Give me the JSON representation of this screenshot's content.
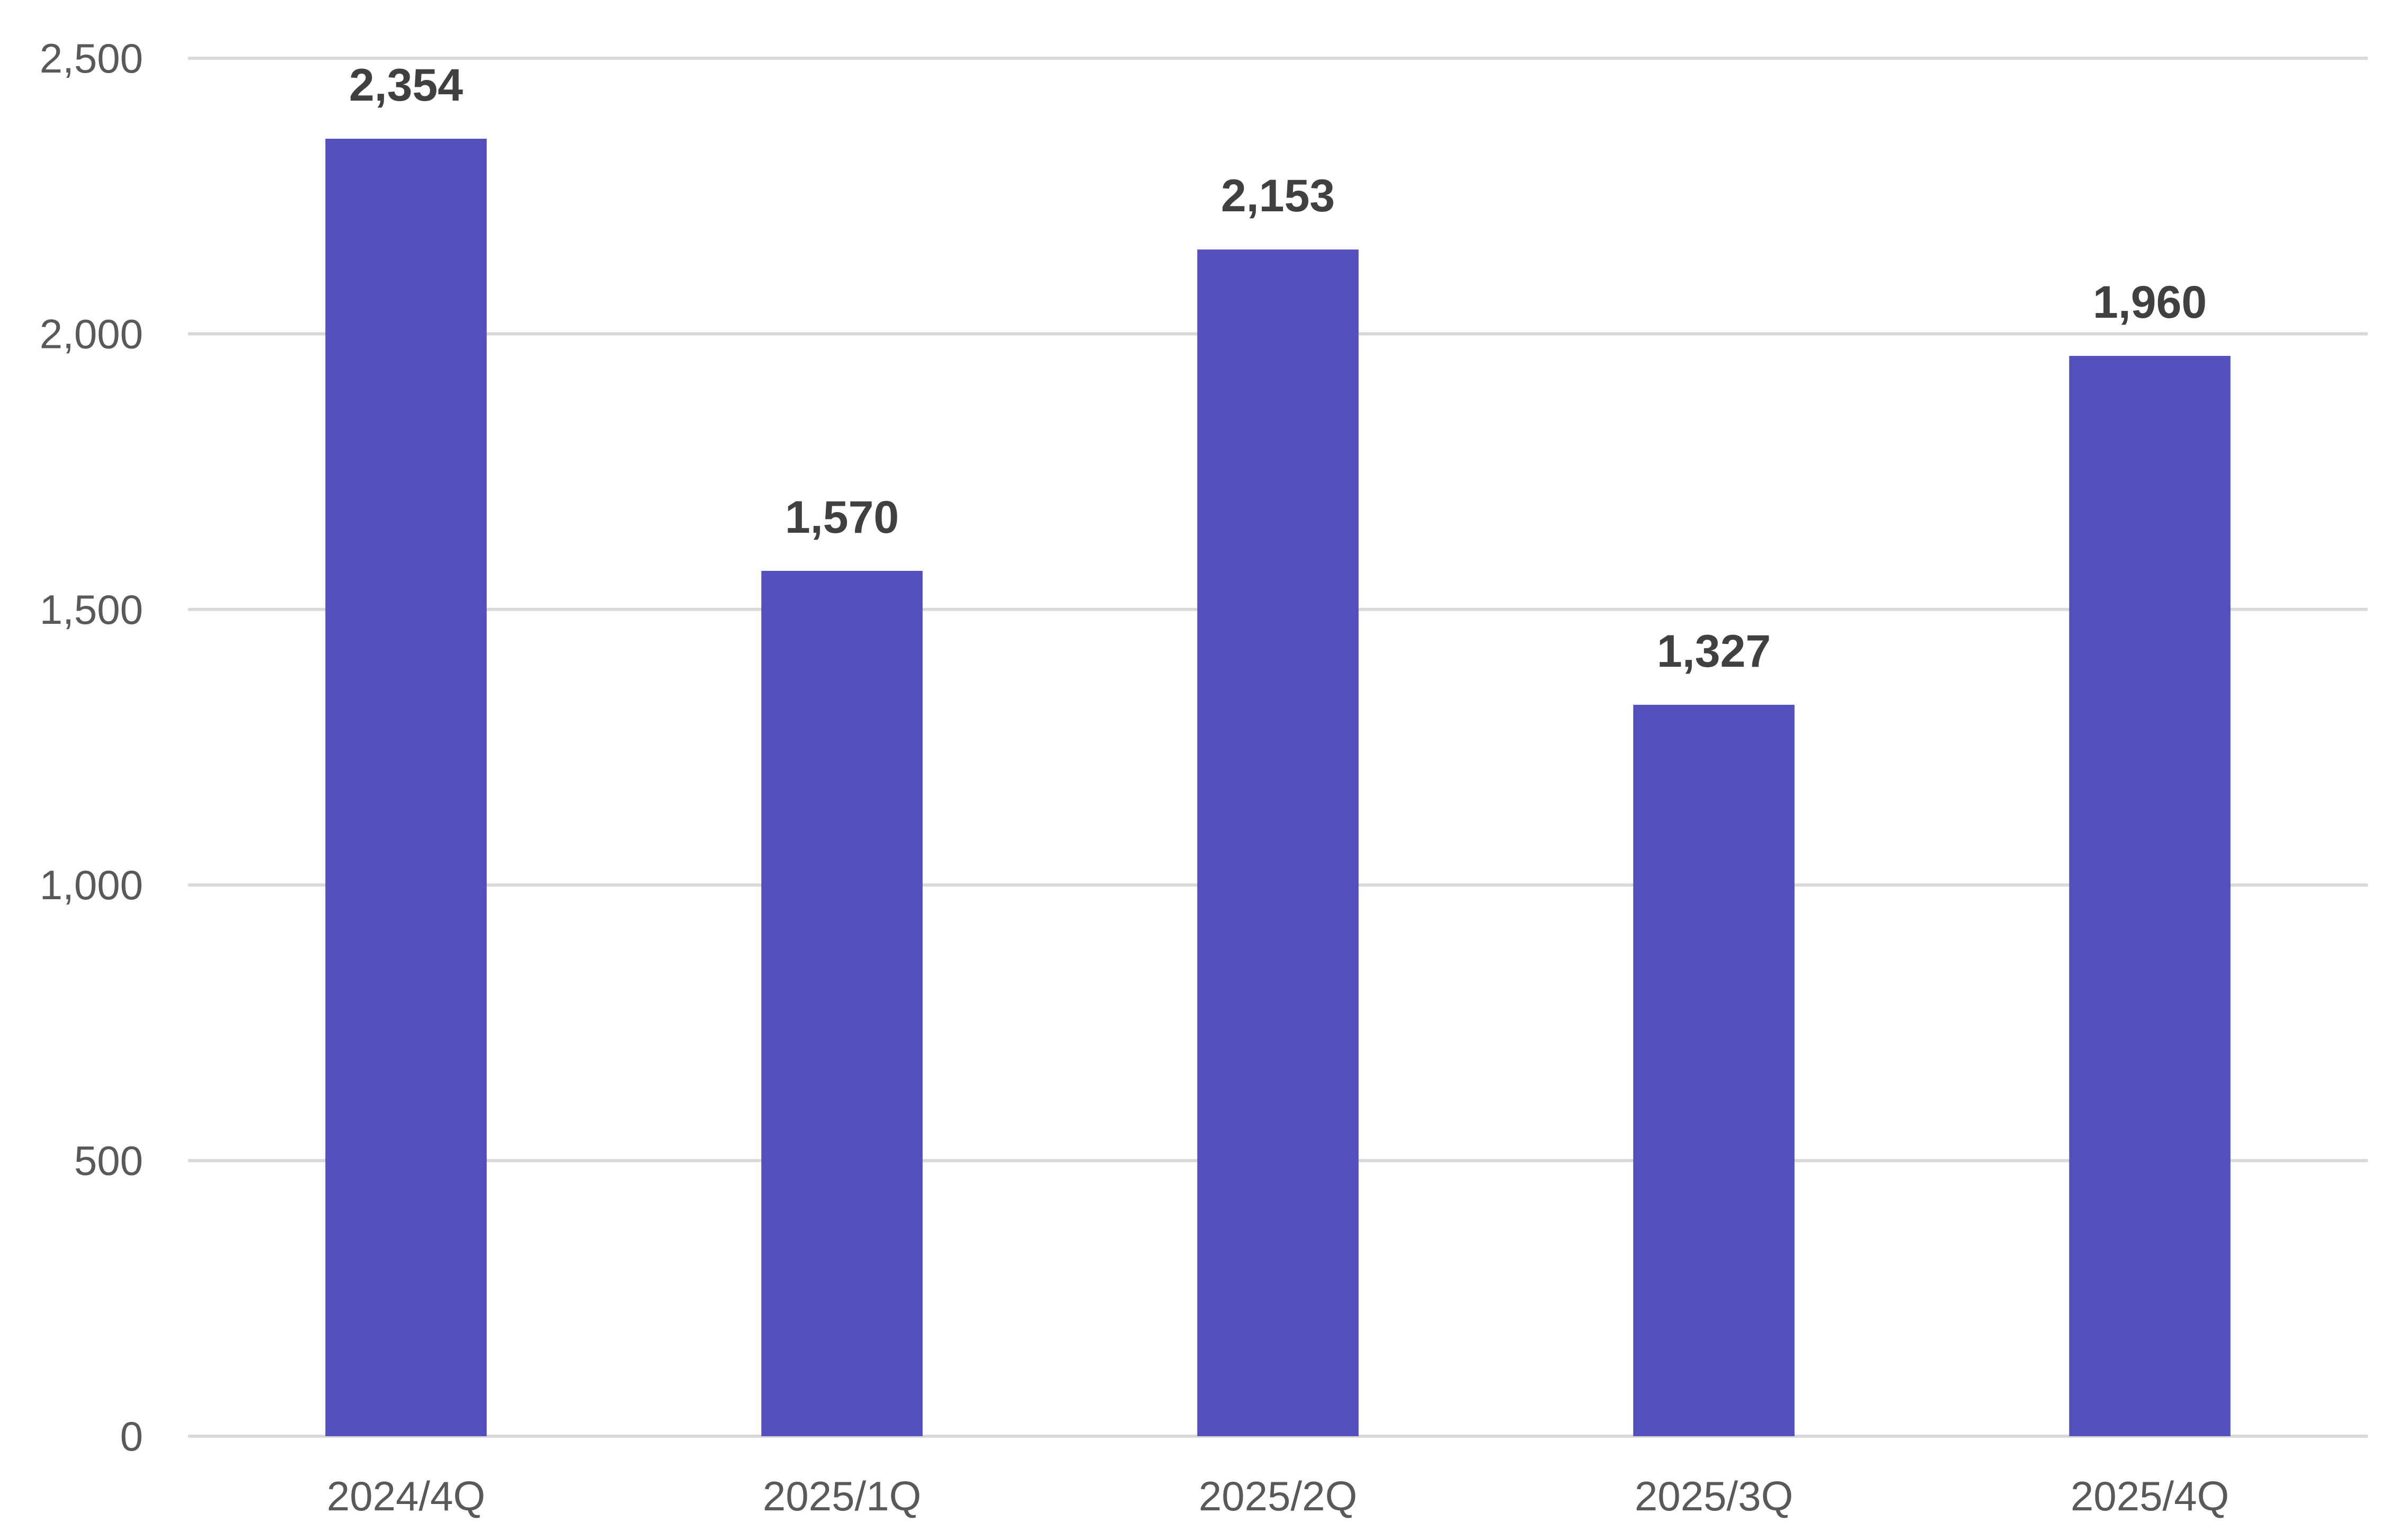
{
  "chart_data": {
    "type": "bar",
    "categories": [
      "2024/4Q",
      "2025/1Q",
      "2025/2Q",
      "2025/3Q",
      "2025/4Q"
    ],
    "values": [
      2354,
      1570,
      2153,
      1327,
      1960
    ],
    "data_labels": [
      "2,354",
      "1,570",
      "2,153",
      "1,327",
      "1,960"
    ],
    "y_ticks": [
      0,
      500,
      1000,
      1500,
      2000,
      2500
    ],
    "y_tick_labels": [
      "0",
      "500",
      "1,000",
      "1,500",
      "2,000",
      "2,500"
    ],
    "ylim": [
      0,
      2500
    ],
    "grid": true,
    "legend": "none",
    "bar_color": "#5450bb",
    "title": "",
    "xlabel": "",
    "ylabel": ""
  }
}
